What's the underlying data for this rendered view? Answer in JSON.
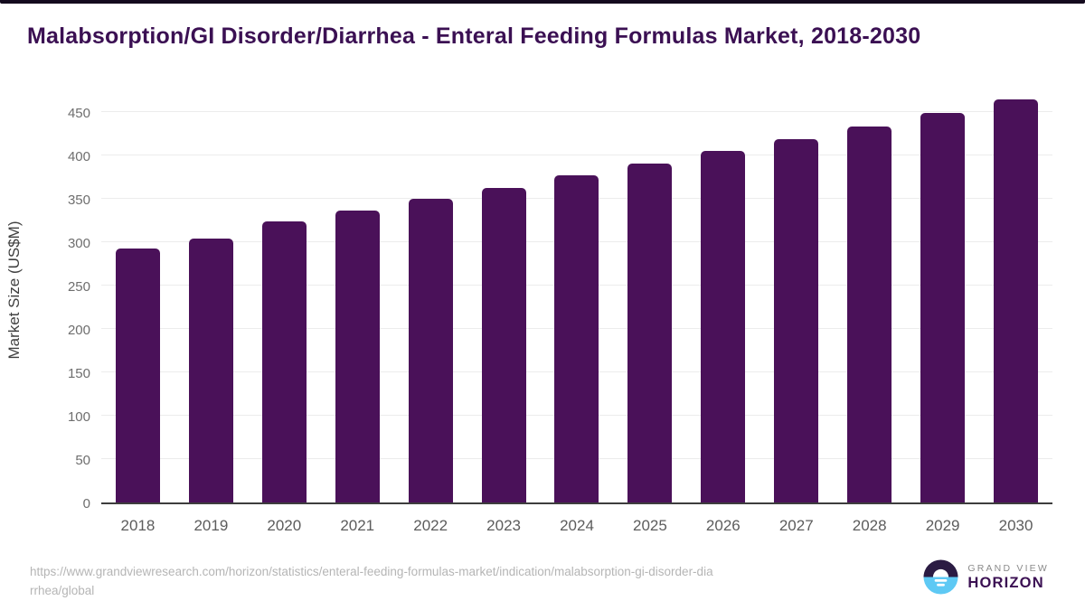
{
  "page": {
    "title": "Malabsorption/GI Disorder/Diarrhea - Enteral Feeding Formulas Market, 2018-2030",
    "source_url_lines": [
      "https://www.grandviewresearch.com/horizon/statistics/enteral-feeding-formulas-market/indication/malabsorption-gi-disorder-dia",
      "rrhea/global"
    ],
    "logo": {
      "top_text": "GRAND VIEW",
      "bottom_text": "HORIZON"
    }
  },
  "colors": {
    "bar": "#4a1159",
    "title_text": "#3b1053",
    "top_border": "#140a1e",
    "gridline": "#ececec",
    "axis_line": "#3d3d3d",
    "y_tick_label": "#6e6e6e",
    "x_tick_label": "#5c5c5c",
    "url_text": "#b5b5b5",
    "logo_circle_top": "#2b1b43",
    "logo_circle_bottom": "#5ec9f4",
    "logo_grand_view_text": "#8a8a8a",
    "logo_horizon_text": "#3b1053"
  },
  "chart_data": {
    "type": "bar",
    "title": "Malabsorption/GI Disorder/Diarrhea - Enteral Feeding Formulas Market, 2018-2030",
    "categories": [
      "2018",
      "2019",
      "2020",
      "2021",
      "2022",
      "2023",
      "2024",
      "2025",
      "2026",
      "2027",
      "2028",
      "2029",
      "2030"
    ],
    "values": [
      293,
      304,
      324,
      336,
      350,
      363,
      377,
      391,
      405,
      419,
      433,
      449,
      465
    ],
    "xlabel": "",
    "ylabel": "Market Size (US$M)",
    "ylim": [
      0,
      500
    ],
    "yticks": [
      0,
      50,
      100,
      150,
      200,
      250,
      300,
      350,
      400,
      450
    ],
    "grid": true,
    "legend": false,
    "bar_color": "#4a1159"
  }
}
